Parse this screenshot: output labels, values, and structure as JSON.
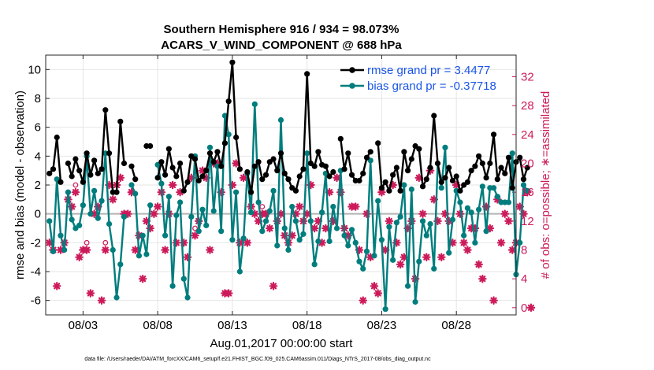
{
  "chart_data": {
    "type": "line",
    "title_line1": "Southern Hemisphere 916 / 934 = 98.073%",
    "title_line2": "ACARS_V_WIND_COMPONENT @ 688 hPa",
    "xlabel": "Aug.01,2017 00:00:00 start",
    "ylabel": "rmse and bias (model - observation)",
    "ylabel_right": "# of obs: o=possible; ∗=assimilated",
    "footnote": "data file: /Users/raeder/DAI/ATM_forcXX/CAM6_setup/f.e21.FHIST_BGC.f09_025.CAM6assim.011/Diags_NTrS_2017-08/obs_diag_output.nc",
    "xlim": [
      0,
      31.5
    ],
    "ylim": [
      -7,
      11
    ],
    "ylim_right": [
      -1,
      35
    ],
    "x_ticks": [
      2.5,
      7.5,
      12.5,
      17.5,
      22.5,
      27.5
    ],
    "x_tick_labels": [
      "08/03",
      "08/08",
      "08/13",
      "08/18",
      "08/23",
      "08/28"
    ],
    "y_ticks": [
      -6,
      -4,
      -2,
      0,
      2,
      4,
      6,
      8,
      10
    ],
    "y_tick_labels": [
      "-6",
      "-4",
      "-2",
      "0",
      "2",
      "4",
      "6",
      "8",
      "10"
    ],
    "y_ticks_right": [
      0,
      4,
      8,
      12,
      16,
      20,
      24,
      28,
      32
    ],
    "y_tick_labels_right": [
      "0",
      "4",
      "8",
      "12",
      "16",
      "20",
      "24",
      "28",
      "32"
    ],
    "zero_line": 0,
    "x_start": 0.25,
    "x_step": 0.25,
    "series": [
      {
        "name": "rmse",
        "legend_label": "rmse grand pr = 3.4477",
        "color": "#000000",
        "values": [
          2.8,
          3.1,
          5.3,
          2.2,
          null,
          3.5,
          2.6,
          3.8,
          3.0,
          2.2,
          4.2,
          2.7,
          3.7,
          2.8,
          3.1,
          7.2,
          4.2,
          1.5,
          1.5,
          6.4,
          3.5,
          null,
          3.3,
          2.4,
          null,
          null,
          4.7,
          4.7,
          null,
          2.5,
          3.6,
          2.7,
          4.5,
          3.2,
          2.6,
          3.5,
          1.6,
          2.2,
          4.0,
          3.8,
          2.3,
          2.6,
          3.0,
          4.2,
          3.6,
          4.3,
          3.3,
          4.9,
          7.8,
          10.5,
          5.3,
          3.1,
          null,
          2.9,
          1.5,
          3.3,
          3.6,
          2.4,
          2.7,
          3.6,
          3.8,
          3.0,
          4.2,
          2.8,
          2.4,
          1.8,
          1.6,
          2.6,
          3.1,
          9.7,
          3.5,
          3.3,
          4.3,
          3.4,
          3.3,
          2.6,
          2.9,
          null,
          5.2,
          3.1,
          4.2,
          2.7,
          2.3,
          2.3,
          2.8,
          3.9,
          4.3,
          null,
          4.9,
          1.8,
          2.2,
          1.6,
          2.7,
          3.2,
          1.6,
          4.3,
          3.0,
          3.8,
          4.7,
          4.5,
          1.9,
          2.4,
          3.2,
          6.8,
          3.5,
          2.2,
          2.5,
          3.2,
          2.3,
          2.6,
          1.6,
          2.0,
          2.2,
          3.0,
          3.3,
          4.0,
          3.5,
          2.5,
          3.5,
          5.5,
          2.4,
          3.2,
          2.8,
          3.9,
          1.8,
          3.6,
          3.9,
          2.4,
          3.2
        ]
      },
      {
        "name": "bias",
        "legend_label": "bias grand pr = -0.37718",
        "color": "#007d7d",
        "values": [
          -0.5,
          -2.6,
          2.4,
          -1.5,
          -2.5,
          1.5,
          -0.4,
          -1.0,
          -0.8,
          0.6,
          4.0,
          0.0,
          1.6,
          -0.3,
          0.9,
          4.2,
          -0.7,
          -2.5,
          -5.8,
          -3.5,
          -0.2,
          null,
          2.0,
          1.4,
          -2.9,
          -1.5,
          -2.8,
          0.6,
          null,
          3.4,
          2.1,
          -1.5,
          1.2,
          -5.0,
          -0.1,
          0.8,
          -4.5,
          -5.8,
          -0.2,
          4.0,
          -1.2,
          0.3,
          -0.8,
          4.6,
          0.2,
          3.3,
          -1.2,
          6.8,
          5.5,
          -1.8,
          1.5,
          -4.0,
          -1.7,
          2.8,
          0.1,
          7.6,
          0.8,
          -1.2,
          -0.5,
          0.2,
          1.6,
          -2.2,
          6.5,
          -1.0,
          -2.5,
          0.5,
          -0.5,
          -1.8,
          -1.4,
          4.2,
          -0.5,
          -3.5,
          -1.9,
          0.1,
          2.8,
          -1.9,
          0.5,
          -1.0,
          3.0,
          -1.5,
          -2.2,
          -1.1,
          -2.0,
          -3.3,
          -3.8,
          -2.6,
          3.7,
          -2.9,
          0.9,
          -1.8,
          -6.6,
          -0.9,
          -3.2,
          -0.6,
          -0.2,
          2.0,
          -5.0,
          1.7,
          -6.1,
          -3.3,
          -0.5,
          -1.5,
          -0.7,
          -3.8,
          3.5,
          1.8,
          4.6,
          -2.7,
          -0.4,
          1.6,
          0.8,
          -1.5,
          0.4,
          0.1,
          -2.0,
          0.3,
          1.9,
          -1.2,
          1.8,
          1.8,
          1.2,
          0.8,
          0.8,
          0.8,
          4.2,
          -4.2,
          -2.0,
          2.0,
          1.6
        ]
      },
      {
        "name": "obs possible",
        "color": "#cc1a5a",
        "values": [
          9,
          8,
          3,
          8,
          9,
          16,
          14,
          17,
          7,
          8,
          9,
          2,
          13,
          14,
          1,
          9,
          17,
          15,
          17,
          18,
          13,
          13,
          16,
          8,
          10,
          4,
          12,
          11,
          13,
          14,
          16,
          8,
          13,
          17,
          9,
          16,
          9,
          7,
          18,
          11,
          12,
          19,
          18,
          8,
          20,
          20,
          16,
          2,
          2,
          17,
          20,
          9,
          18,
          9,
          14,
          13,
          12,
          14,
          13,
          11,
          3,
          12,
          13,
          10,
          9,
          10,
          13,
          14,
          12,
          13,
          17,
          11,
          12,
          9,
          11,
          16,
          12,
          18,
          16,
          11,
          10,
          14,
          14,
          8,
          1,
          13,
          7,
          3,
          2,
          16,
          8,
          12,
          17,
          9,
          6,
          7,
          11,
          12,
          4,
          18,
          13,
          7,
          19,
          15,
          12,
          7,
          13,
          12,
          9,
          17,
          13,
          9,
          8,
          11,
          11,
          6,
          4,
          14,
          11,
          1,
          15,
          9,
          13,
          12,
          8,
          9,
          14,
          13,
          16,
          0
        ]
      },
      {
        "name": "obs assimilated",
        "color": "#cc1a5a",
        "values": [
          9,
          8,
          3,
          8,
          9,
          15,
          14,
          16,
          7,
          8,
          8,
          2,
          13,
          14,
          1,
          8,
          17,
          15,
          17,
          18,
          13,
          13,
          16,
          8,
          10,
          4,
          12,
          11,
          13,
          14,
          16,
          8,
          13,
          17,
          9,
          16,
          9,
          7,
          18,
          10,
          12,
          19,
          18,
          8,
          20,
          20,
          16,
          2,
          2,
          17,
          20,
          9,
          18,
          9,
          14,
          13,
          12,
          13,
          13,
          11,
          3,
          12,
          13,
          10,
          9,
          10,
          13,
          14,
          12,
          13,
          17,
          11,
          12,
          9,
          11,
          16,
          12,
          18,
          16,
          11,
          10,
          14,
          14,
          8,
          1,
          13,
          7,
          3,
          2,
          16,
          8,
          12,
          17,
          9,
          6,
          7,
          11,
          12,
          4,
          18,
          13,
          7,
          19,
          15,
          12,
          7,
          13,
          12,
          9,
          17,
          13,
          9,
          8,
          11,
          11,
          6,
          4,
          14,
          11,
          1,
          15,
          9,
          13,
          12,
          8,
          9,
          14,
          13,
          16,
          0
        ]
      }
    ]
  }
}
